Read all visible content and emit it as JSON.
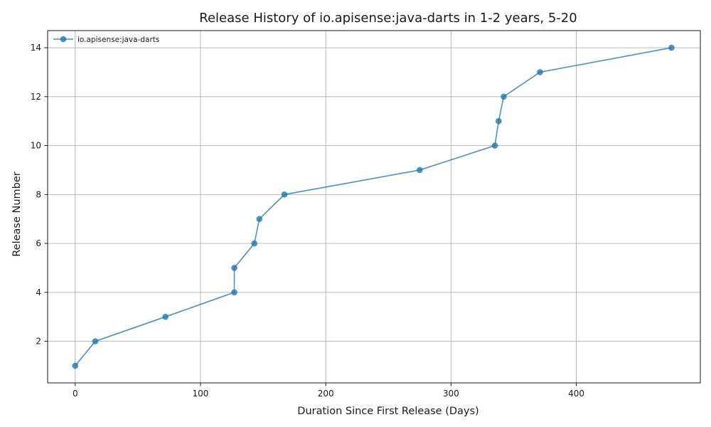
{
  "chart_data": {
    "type": "line",
    "title": "Release History of io.apisense:java-darts in 1-2 years, 5-20",
    "xlabel": "Duration Since First Release (Days)",
    "ylabel": "Release Number",
    "xlim": [
      -22,
      499
    ],
    "ylim": [
      0.3,
      14.7
    ],
    "xticks": [
      0,
      100,
      200,
      300,
      400
    ],
    "yticks": [
      2,
      4,
      6,
      8,
      10,
      12,
      14
    ],
    "grid": true,
    "legend_position": "top-left",
    "series": [
      {
        "name": "io.apisense:java-darts",
        "color": "#1f77b4",
        "marker": "circle",
        "x": [
          0,
          16,
          72,
          127,
          127,
          143,
          147,
          167,
          275,
          335,
          338,
          342,
          371,
          476
        ],
        "y": [
          1,
          2,
          3,
          4,
          5,
          6,
          7,
          8,
          9,
          10,
          11,
          12,
          13,
          14
        ]
      }
    ]
  }
}
